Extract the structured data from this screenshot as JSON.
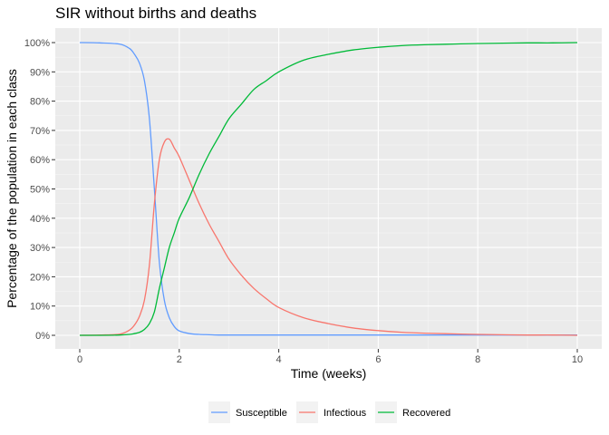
{
  "chart_data": {
    "type": "line",
    "title": "SIR without births and deaths",
    "xlabel": "Time (weeks)",
    "ylabel": "Percentage of the population in each class",
    "xlim": [
      0,
      10
    ],
    "ylim": [
      0,
      1
    ],
    "x_ticks": [
      0,
      2,
      4,
      6,
      8,
      10
    ],
    "x_tick_labels": [
      "0",
      "2",
      "4",
      "6",
      "8",
      "10"
    ],
    "y_ticks": [
      0,
      0.1,
      0.2,
      0.3,
      0.4,
      0.5,
      0.6,
      0.7,
      0.8,
      0.9,
      1.0
    ],
    "y_tick_labels": [
      "0%",
      "10%",
      "20%",
      "30%",
      "40%",
      "50%",
      "60%",
      "70%",
      "80%",
      "90%",
      "100%"
    ],
    "grid": true,
    "legend_position": "bottom",
    "x": [
      0,
      0.4,
      0.8,
      1.0,
      1.1,
      1.2,
      1.3,
      1.4,
      1.5,
      1.6,
      1.7,
      1.8,
      1.9,
      2.0,
      2.2,
      2.4,
      2.6,
      2.8,
      3.0,
      3.25,
      3.5,
      3.75,
      4.0,
      4.5,
      5.0,
      5.5,
      6.0,
      6.5,
      7.0,
      7.5,
      8.0,
      8.5,
      9.0,
      9.5,
      10.0
    ],
    "series": [
      {
        "name": "Susceptible",
        "color": "#619CFF",
        "values": [
          1.0,
          0.999,
          0.995,
          0.98,
          0.96,
          0.93,
          0.87,
          0.74,
          0.5,
          0.25,
          0.12,
          0.06,
          0.03,
          0.015,
          0.006,
          0.003,
          0.002,
          0.001,
          0.001,
          0.001,
          0.001,
          0.001,
          0.001,
          0.001,
          0.001,
          0.001,
          0.001,
          0.001,
          0.001,
          0.001,
          0.001,
          0.001,
          0.001,
          0.001,
          0.001
        ]
      },
      {
        "name": "Infectious",
        "color": "#F8766D",
        "values": [
          0.0,
          0.001,
          0.004,
          0.018,
          0.035,
          0.065,
          0.12,
          0.24,
          0.45,
          0.6,
          0.66,
          0.67,
          0.64,
          0.61,
          0.53,
          0.45,
          0.38,
          0.32,
          0.26,
          0.205,
          0.16,
          0.125,
          0.095,
          0.06,
          0.04,
          0.025,
          0.016,
          0.01,
          0.007,
          0.005,
          0.003,
          0.002,
          0.001,
          0.001,
          0.0
        ]
      },
      {
        "name": "Recovered",
        "color": "#00BA38",
        "values": [
          0.0,
          0.0,
          0.001,
          0.003,
          0.006,
          0.01,
          0.02,
          0.04,
          0.08,
          0.16,
          0.23,
          0.3,
          0.35,
          0.4,
          0.47,
          0.55,
          0.62,
          0.68,
          0.74,
          0.79,
          0.84,
          0.87,
          0.9,
          0.94,
          0.96,
          0.975,
          0.984,
          0.99,
          0.993,
          0.995,
          0.997,
          0.998,
          0.999,
          0.999,
          1.0
        ]
      }
    ]
  }
}
